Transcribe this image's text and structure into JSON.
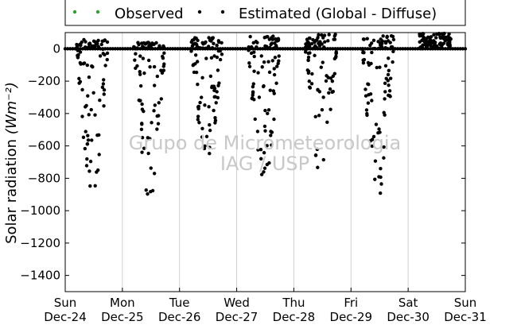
{
  "chart_data": {
    "type": "scatter",
    "title": "",
    "ylabel": "Solar radiation",
    "ylabel_unit": "(Wm⁻²)",
    "ylim": [
      -1500,
      100
    ],
    "y_ticks": [
      0,
      -200,
      -400,
      -600,
      -800,
      -1000,
      -1200,
      -1400
    ],
    "x_days": [
      {
        "weekday": "Sun",
        "date": "Dec-24"
      },
      {
        "weekday": "Mon",
        "date": "Dec-25"
      },
      {
        "weekday": "Tue",
        "date": "Dec-26"
      },
      {
        "weekday": "Wed",
        "date": "Dec-27"
      },
      {
        "weekday": "Thu",
        "date": "Dec-28"
      },
      {
        "weekday": "Fri",
        "date": "Dec-29"
      },
      {
        "weekday": "Sat",
        "date": "Dec-30"
      },
      {
        "weekday": "Sun",
        "date": "Dec-31"
      }
    ],
    "grid": "vertical",
    "legend": {
      "placement": "top",
      "entries": [
        {
          "name": "Observed",
          "color": "#2ca02c"
        },
        {
          "name": "Estimated (Global - Diffuse)",
          "color": "#000000"
        }
      ]
    },
    "series": [
      {
        "name": "Observed",
        "color": "#2ca02c",
        "note_values": "near zero, hidden behind estimated points",
        "days": [
          {
            "day": 0,
            "points": [
              [
                0.3,
                0
              ],
              [
                0.5,
                5
              ],
              [
                0.7,
                0
              ]
            ]
          },
          {
            "day": 1,
            "points": [
              [
                0.3,
                0
              ],
              [
                0.5,
                5
              ],
              [
                0.7,
                0
              ]
            ]
          }
        ]
      },
      {
        "name": "Estimated (Global - Diffuse)",
        "color": "#000000",
        "days": [
          {
            "day": 0,
            "min": -900,
            "max": 60
          },
          {
            "day": 1,
            "min": -950,
            "max": 40
          },
          {
            "day": 2,
            "min": -710,
            "max": 70
          },
          {
            "day": 3,
            "min": -840,
            "max": 80
          },
          {
            "day": 4,
            "min": -790,
            "max": 90
          },
          {
            "day": 5,
            "min": -930,
            "max": 80
          },
          {
            "day": 6,
            "min": 0,
            "max": 95
          }
        ]
      }
    ],
    "watermark": [
      "Grupo de Micrometeorologia",
      "IAG / USP"
    ]
  }
}
